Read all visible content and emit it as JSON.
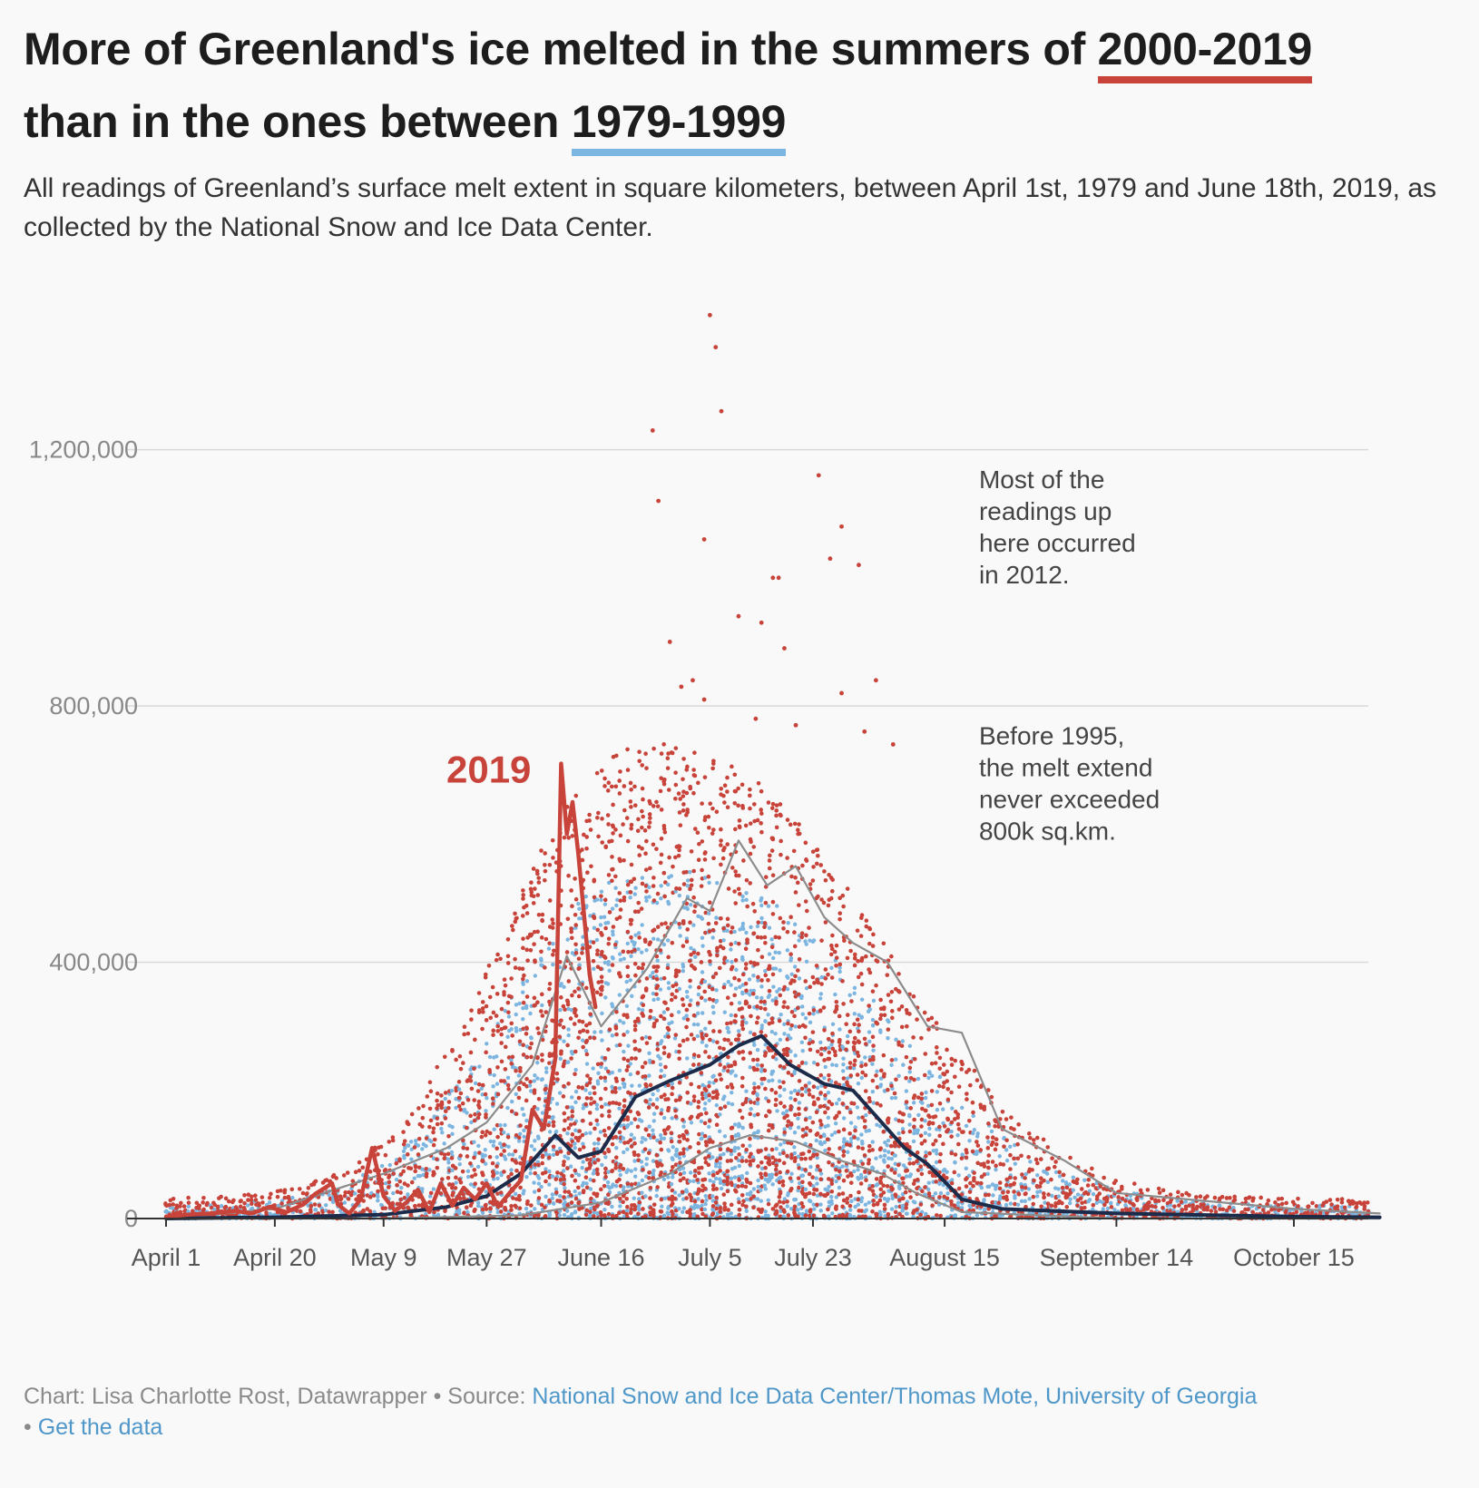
{
  "header": {
    "title_part1": "More of Greenland's ice melted in the summers of",
    "title_highlight1": "2000-2019",
    "title_part2": "than in the ones between",
    "title_highlight2": "1979-1999",
    "subtitle": "All readings of Greenland’s surface melt extent in square kilometers, between April 1st, 1979 and June 18th, 2019, as collected by the National Snow and Ice Data Center."
  },
  "colors": {
    "red": "#c8433a",
    "blue": "#7cb5e0",
    "navy": "#1c2b4a",
    "gray": "#8c8c8c",
    "grid": "#d9d9d9"
  },
  "chart_data": {
    "type": "scatter",
    "ylim": [
      0,
      1460000
    ],
    "xlim_days_from_april1": [
      0,
      210
    ],
    "y_ticks": [
      {
        "value": 0,
        "label": "0"
      },
      {
        "value": 400000,
        "label": "400,000"
      },
      {
        "value": 800000,
        "label": "800,000"
      },
      {
        "value": 1200000,
        "label": "1,200,000"
      }
    ],
    "x_ticks": [
      {
        "date": "April 1",
        "label": "April 1"
      },
      {
        "date": "April 20",
        "label": "April 20"
      },
      {
        "date": "May 9",
        "label": "May 9"
      },
      {
        "date": "May 27",
        "label": "May 27"
      },
      {
        "date": "June 16",
        "label": "June 16"
      },
      {
        "date": "July 5",
        "label": "July 5"
      },
      {
        "date": "July 23",
        "label": "July 23"
      },
      {
        "date": "August 15",
        "label": "August 15"
      },
      {
        "date": "September 14",
        "label": "September 14"
      },
      {
        "date": "October 15",
        "label": "October 15"
      }
    ],
    "series": [
      {
        "name": "2000-2019",
        "kind": "dots",
        "color": "#c8433a"
      },
      {
        "name": "1979-1999",
        "kind": "dots",
        "color": "#7cb5e0"
      },
      {
        "name": "2019",
        "kind": "line",
        "color": "#c8433a",
        "points": [
          {
            "date": "April 1",
            "y": 3000
          },
          {
            "date": "April 5",
            "y": 6000
          },
          {
            "date": "April 9",
            "y": 8000
          },
          {
            "date": "April 13",
            "y": 12000
          },
          {
            "date": "April 16",
            "y": 8000
          },
          {
            "date": "April 19",
            "y": 18000
          },
          {
            "date": "April 22",
            "y": 10000
          },
          {
            "date": "April 25",
            "y": 22000
          },
          {
            "date": "April 27",
            "y": 38000
          },
          {
            "date": "April 30",
            "y": 55000
          },
          {
            "date": "May 1",
            "y": 22000
          },
          {
            "date": "May 3",
            "y": 8000
          },
          {
            "date": "May 5",
            "y": 30000
          },
          {
            "date": "May 7",
            "y": 110000
          },
          {
            "date": "May 9",
            "y": 35000
          },
          {
            "date": "May 11",
            "y": 12000
          },
          {
            "date": "May 13",
            "y": 25000
          },
          {
            "date": "May 15",
            "y": 45000
          },
          {
            "date": "May 17",
            "y": 10000
          },
          {
            "date": "May 19",
            "y": 55000
          },
          {
            "date": "May 21",
            "y": 20000
          },
          {
            "date": "May 23",
            "y": 48000
          },
          {
            "date": "May 25",
            "y": 30000
          },
          {
            "date": "May 27",
            "y": 55000
          },
          {
            "date": "May 29",
            "y": 18000
          },
          {
            "date": "May 31",
            "y": 40000
          },
          {
            "date": "June 2",
            "y": 60000
          },
          {
            "date": "June 4",
            "y": 170000
          },
          {
            "date": "June 6",
            "y": 140000
          },
          {
            "date": "June 8",
            "y": 250000
          },
          {
            "date": "June 9",
            "y": 710000
          },
          {
            "date": "June 10",
            "y": 600000
          },
          {
            "date": "June 11",
            "y": 650000
          },
          {
            "date": "June 12",
            "y": 570000
          },
          {
            "date": "June 14",
            "y": 380000
          },
          {
            "date": "June 15",
            "y": 330000
          }
        ]
      },
      {
        "name": "1979-1999 median",
        "kind": "line",
        "color": "#1c2b4a",
        "points": [
          {
            "date": "April 1",
            "y": 0
          },
          {
            "date": "April 20",
            "y": 2000
          },
          {
            "date": "May 9",
            "y": 6000
          },
          {
            "date": "May 20",
            "y": 18000
          },
          {
            "date": "May 27",
            "y": 35000
          },
          {
            "date": "June 2",
            "y": 70000
          },
          {
            "date": "June 8",
            "y": 130000
          },
          {
            "date": "June 12",
            "y": 95000
          },
          {
            "date": "June 16",
            "y": 105000
          },
          {
            "date": "June 22",
            "y": 190000
          },
          {
            "date": "June 28",
            "y": 215000
          },
          {
            "date": "July 5",
            "y": 240000
          },
          {
            "date": "July 10",
            "y": 270000
          },
          {
            "date": "July 14",
            "y": 285000
          },
          {
            "date": "July 19",
            "y": 240000
          },
          {
            "date": "July 25",
            "y": 210000
          },
          {
            "date": "July 30",
            "y": 200000
          },
          {
            "date": "August 4",
            "y": 150000
          },
          {
            "date": "August 8",
            "y": 110000
          },
          {
            "date": "August 12",
            "y": 85000
          },
          {
            "date": "August 18",
            "y": 30000
          },
          {
            "date": "August 25",
            "y": 15000
          },
          {
            "date": "September 14",
            "y": 8000
          },
          {
            "date": "October 15",
            "y": 3000
          },
          {
            "date": "October 30",
            "y": 2000
          }
        ]
      },
      {
        "name": "upper band",
        "kind": "line",
        "color": "#8c8c8c",
        "points": [
          {
            "date": "April 1",
            "y": 0
          },
          {
            "date": "April 20",
            "y": 15000
          },
          {
            "date": "May 9",
            "y": 70000
          },
          {
            "date": "May 20",
            "y": 110000
          },
          {
            "date": "May 27",
            "y": 150000
          },
          {
            "date": "June 4",
            "y": 240000
          },
          {
            "date": "June 10",
            "y": 410000
          },
          {
            "date": "June 16",
            "y": 300000
          },
          {
            "date": "June 24",
            "y": 390000
          },
          {
            "date": "July 1",
            "y": 500000
          },
          {
            "date": "July 5",
            "y": 480000
          },
          {
            "date": "July 10",
            "y": 590000
          },
          {
            "date": "July 15",
            "y": 520000
          },
          {
            "date": "July 20",
            "y": 550000
          },
          {
            "date": "July 25",
            "y": 470000
          },
          {
            "date": "July 30",
            "y": 430000
          },
          {
            "date": "August 5",
            "y": 400000
          },
          {
            "date": "August 12",
            "y": 300000
          },
          {
            "date": "August 18",
            "y": 290000
          },
          {
            "date": "August 25",
            "y": 140000
          },
          {
            "date": "September 5",
            "y": 90000
          },
          {
            "date": "September 14",
            "y": 40000
          },
          {
            "date": "October 15",
            "y": 15000
          },
          {
            "date": "October 30",
            "y": 8000
          }
        ]
      },
      {
        "name": "lower band",
        "kind": "line",
        "color": "#8c8c8c",
        "points": [
          {
            "date": "April 1",
            "y": 0
          },
          {
            "date": "May 9",
            "y": 0
          },
          {
            "date": "June 2",
            "y": 5000
          },
          {
            "date": "June 16",
            "y": 25000
          },
          {
            "date": "June 28",
            "y": 70000
          },
          {
            "date": "July 5",
            "y": 110000
          },
          {
            "date": "July 12",
            "y": 130000
          },
          {
            "date": "July 20",
            "y": 120000
          },
          {
            "date": "July 28",
            "y": 90000
          },
          {
            "date": "August 4",
            "y": 70000
          },
          {
            "date": "August 10",
            "y": 40000
          },
          {
            "date": "August 18",
            "y": 10000
          },
          {
            "date": "September 14",
            "y": 0
          },
          {
            "date": "October 30",
            "y": 0
          }
        ]
      }
    ],
    "annotations": [
      {
        "text": "2019",
        "date": "June 6",
        "y": 700000
      },
      {
        "lines": [
          "Most of the",
          "readings up",
          "here occurred",
          "in 2012."
        ],
        "date": "August 21",
        "y": 1140000
      },
      {
        "lines": [
          "Before 1995,",
          "the melt extend",
          "never exceeded",
          "800k sq.km."
        ],
        "date": "August 21",
        "y": 740000
      }
    ]
  },
  "footer": {
    "credit": "Chart: Lisa Charlotte Rost, Datawrapper • Source: ",
    "source_link": "National Snow and Ice Data Center/Thomas Mote, University of Georgia",
    "separator": "• ",
    "data_link": "Get the data"
  }
}
